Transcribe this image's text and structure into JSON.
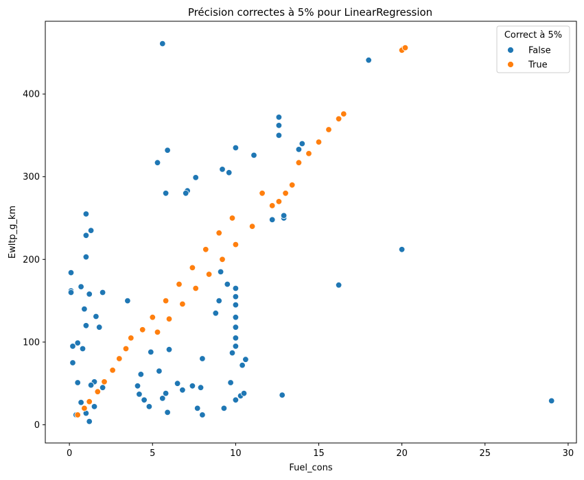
{
  "chart_data": {
    "type": "scatter",
    "title": "Précision correctes à 5% pour LinearRegression",
    "xlabel": "Fuel_cons",
    "ylabel": "Ewltp_g_km",
    "xlim": [
      -1.45,
      30.5
    ],
    "ylim": [
      -22,
      488
    ],
    "xticks": [
      0,
      5,
      10,
      15,
      20,
      25,
      30
    ],
    "yticks": [
      0,
      100,
      200,
      300,
      400
    ],
    "grid": false,
    "legend": {
      "title": "Correct à 5%",
      "placement": "top-right",
      "entries": [
        "False",
        "True"
      ]
    },
    "colors": {
      "False": "#1f77b4",
      "True": "#ff7f0e"
    },
    "series": [
      {
        "name": "False",
        "points": [
          [
            5.6,
            461
          ],
          [
            18.0,
            441
          ],
          [
            29.0,
            29
          ],
          [
            20.0,
            212
          ],
          [
            16.2,
            169
          ],
          [
            12.8,
            36
          ],
          [
            0.1,
            184
          ],
          [
            0.1,
            162
          ],
          [
            0.1,
            160
          ],
          [
            0.2,
            95
          ],
          [
            0.2,
            75
          ],
          [
            0.5,
            99
          ],
          [
            0.5,
            51
          ],
          [
            0.8,
            92
          ],
          [
            1.0,
            255
          ],
          [
            1.0,
            229
          ],
          [
            1.0,
            203
          ],
          [
            1.3,
            235
          ],
          [
            0.7,
            167
          ],
          [
            5.3,
            317
          ],
          [
            5.9,
            332
          ],
          [
            5.8,
            280
          ],
          [
            10.0,
            335
          ],
          [
            12.6,
            372
          ],
          [
            12.6,
            362
          ],
          [
            12.6,
            350
          ],
          [
            14.0,
            340
          ],
          [
            13.8,
            333
          ],
          [
            12.9,
            250
          ],
          [
            12.9,
            253
          ],
          [
            12.2,
            248
          ],
          [
            11.1,
            326
          ],
          [
            9.6,
            305
          ],
          [
            9.2,
            309
          ],
          [
            7.6,
            299
          ],
          [
            7.1,
            283
          ],
          [
            7.0,
            280
          ],
          [
            8.0,
            80
          ],
          [
            9.8,
            87
          ],
          [
            10.6,
            79
          ],
          [
            10.4,
            72
          ],
          [
            9.3,
            20
          ],
          [
            5.4,
            65
          ],
          [
            4.1,
            47
          ],
          [
            4.2,
            37
          ],
          [
            4.5,
            30
          ],
          [
            4.8,
            22
          ],
          [
            5.6,
            32
          ],
          [
            5.8,
            38
          ],
          [
            5.9,
            15
          ],
          [
            6.5,
            50
          ],
          [
            6.8,
            42
          ],
          [
            7.4,
            47
          ],
          [
            7.9,
            45
          ],
          [
            7.7,
            20
          ],
          [
            8.0,
            12
          ],
          [
            9.7,
            51
          ],
          [
            10.0,
            30
          ],
          [
            10.3,
            35
          ],
          [
            10.5,
            38
          ],
          [
            10.0,
            165
          ],
          [
            10.0,
            155
          ],
          [
            10.0,
            145
          ],
          [
            10.0,
            130
          ],
          [
            10.0,
            118
          ],
          [
            10.0,
            105
          ],
          [
            10.0,
            95
          ],
          [
            9.5,
            170
          ],
          [
            9.1,
            185
          ],
          [
            9.0,
            150
          ],
          [
            8.8,
            135
          ],
          [
            1.5,
            52
          ],
          [
            1.3,
            48
          ],
          [
            2.0,
            45
          ],
          [
            1.5,
            22
          ],
          [
            1.0,
            14
          ],
          [
            1.2,
            4
          ],
          [
            0.4,
            12
          ],
          [
            0.7,
            27
          ],
          [
            1.6,
            131
          ],
          [
            1.2,
            158
          ],
          [
            0.9,
            140
          ],
          [
            1.0,
            120
          ],
          [
            2.0,
            160
          ],
          [
            1.8,
            118
          ],
          [
            4.3,
            61
          ],
          [
            4.9,
            88
          ],
          [
            6.0,
            91
          ],
          [
            3.5,
            150
          ]
        ]
      },
      {
        "name": "True",
        "points": [
          [
            20.1,
            455
          ],
          [
            20.0,
            453
          ],
          [
            20.2,
            456
          ],
          [
            3.7,
            105
          ],
          [
            3.4,
            92
          ],
          [
            3.0,
            80
          ],
          [
            2.6,
            66
          ],
          [
            2.1,
            52
          ],
          [
            1.7,
            40
          ],
          [
            1.2,
            28
          ],
          [
            0.9,
            20
          ],
          [
            0.5,
            12
          ],
          [
            16.5,
            376
          ],
          [
            16.2,
            370
          ],
          [
            15.6,
            357
          ],
          [
            15.0,
            342
          ],
          [
            14.4,
            328
          ],
          [
            13.8,
            317
          ],
          [
            13.4,
            290
          ],
          [
            13.0,
            280
          ],
          [
            12.6,
            270
          ],
          [
            12.2,
            265
          ],
          [
            11.6,
            280
          ],
          [
            9.8,
            250
          ],
          [
            9.0,
            232
          ],
          [
            8.2,
            212
          ],
          [
            7.4,
            190
          ],
          [
            6.6,
            170
          ],
          [
            5.8,
            150
          ],
          [
            5.0,
            130
          ],
          [
            4.4,
            115
          ],
          [
            11.0,
            240
          ],
          [
            10.0,
            218
          ],
          [
            9.2,
            200
          ],
          [
            8.4,
            182
          ],
          [
            7.6,
            165
          ],
          [
            6.8,
            146
          ],
          [
            6.0,
            128
          ],
          [
            5.3,
            112
          ]
        ]
      }
    ]
  }
}
